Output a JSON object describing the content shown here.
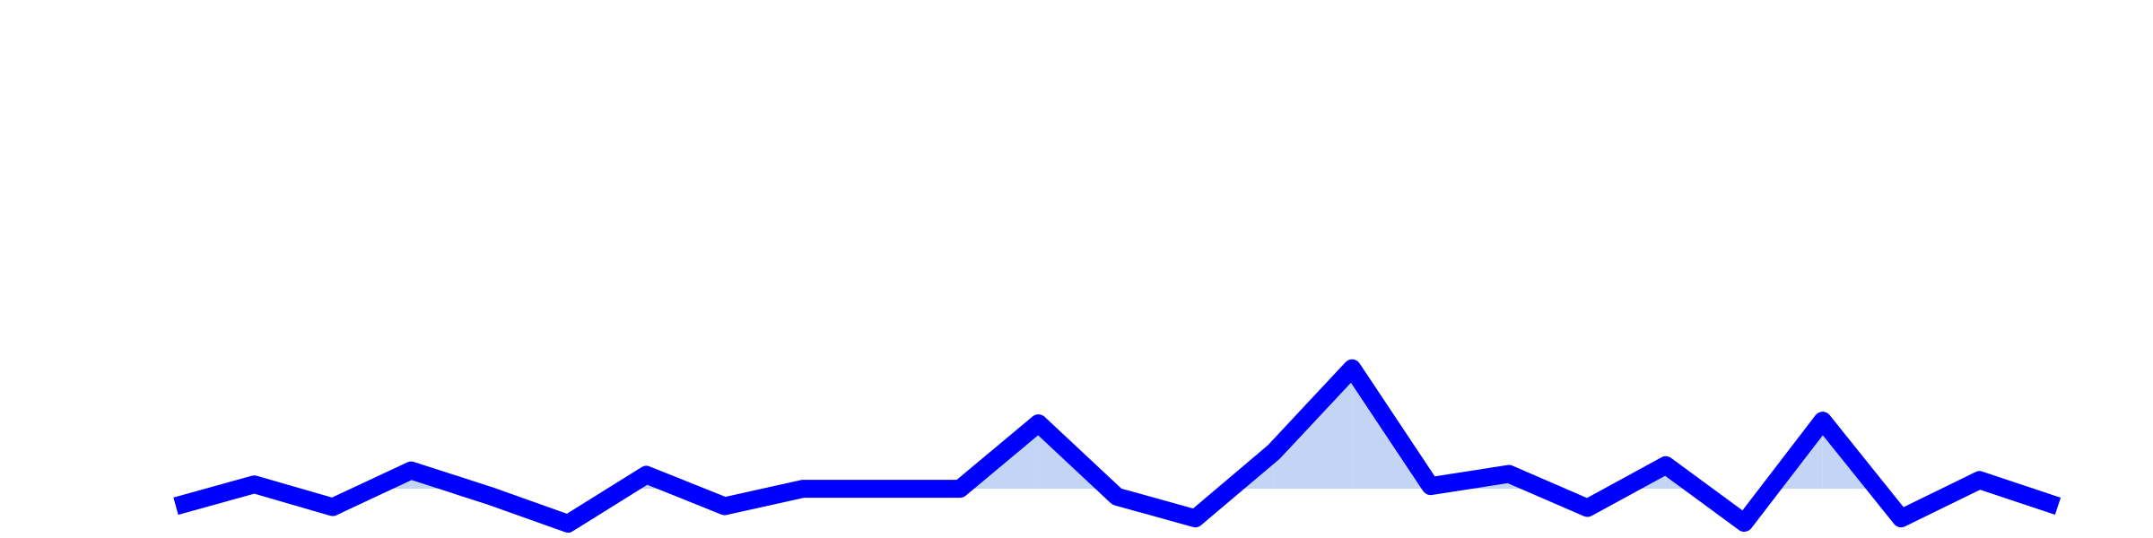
{
  "chart_data": {
    "type": "line",
    "x": [
      0,
      1,
      2,
      3,
      4,
      5,
      6,
      7,
      8,
      9,
      10,
      11,
      12,
      13,
      14,
      15,
      16,
      17,
      18,
      19,
      20,
      21,
      22,
      23,
      24
    ],
    "series": [
      {
        "values": [
          2.0,
          4.5,
          1.9,
          6.1,
          3.2,
          0.0,
          5.6,
          2.0,
          4.0,
          4.0,
          4.0,
          11.5,
          3.1,
          0.6,
          8.2,
          17.8,
          4.3,
          5.7,
          1.8,
          6.7,
          0.1,
          11.8,
          0.6,
          5.0,
          2.0
        ],
        "color": "#0000ff"
      }
    ],
    "area_fill_color": "#c3d5f5",
    "baseline": 4.0,
    "ylim": [
      0,
      60
    ],
    "grid": false,
    "legend": false,
    "axes_visible": false
  }
}
